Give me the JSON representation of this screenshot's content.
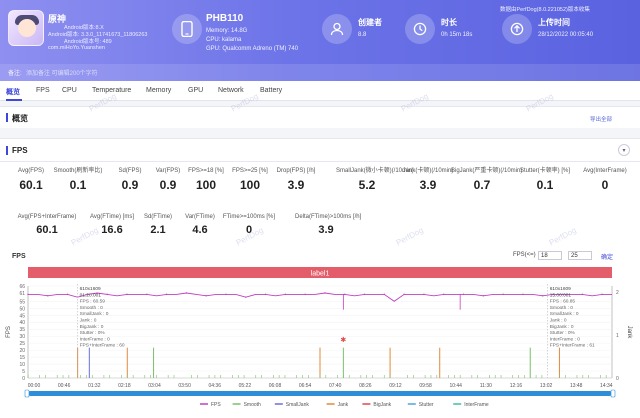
{
  "app": {
    "name": "原神",
    "line1": "Android版本:8.X",
    "line2": "Android版本: 3.3.0_11741673_11806263",
    "line3": "Android版本号: 489",
    "package": "com.miHoYo.Yuanshen",
    "note_label": "备注:",
    "note_text": "添加备注   可编辑200个字符"
  },
  "device": {
    "name": "PHB110",
    "memory": "Memory: 14.8G",
    "cpu": "CPU: kalama",
    "gpu": "GPU: Qualcomm Adreno (TM) 740"
  },
  "stats": [
    {
      "label": "创建者",
      "value": "8.8",
      "icon": "user-icon"
    },
    {
      "label": "时长",
      "value": "0h 15m 18s",
      "icon": "clock-icon"
    },
    {
      "label": "上传时间",
      "value": "28/12/2022 00:05:40",
      "icon": "upload-icon"
    }
  ],
  "top_right": "数据由PerfDog(8.0.221052)版本收集",
  "tabs": [
    "概览",
    "FPS",
    "CPU",
    "Temperature",
    "Memory",
    "GPU",
    "Network",
    "Battery"
  ],
  "overview": {
    "title": "概览",
    "link": "导出全部"
  },
  "fps_section": {
    "title": "FPS"
  },
  "metrics_row1": [
    {
      "label": "Avg(FPS)",
      "value": "60.1"
    },
    {
      "label": "Smooth(刷新率比)",
      "value": "0.1"
    },
    {
      "label": "Sd(FPS)",
      "value": "0.9"
    },
    {
      "label": "Var(FPS)",
      "value": "0.9"
    },
    {
      "label": "FPS>=18 [%]",
      "value": "100"
    },
    {
      "label": "FPS>=25 [%]",
      "value": "100"
    },
    {
      "label": "Drop(FPS) [/h]",
      "value": "3.9"
    },
    {
      "label": "SmallJank(微小卡顿)(/10min)",
      "value": "5.2"
    },
    {
      "label": "Jank(卡顿)(/10min)",
      "value": "3.9"
    },
    {
      "label": "BigJank(严重卡顿)(/10min)",
      "value": "0.7"
    },
    {
      "label": "Stutter(卡顿率) [%]",
      "value": "0.1"
    },
    {
      "label": "Avg(InterFrame)",
      "value": "0"
    }
  ],
  "metrics_row2": [
    {
      "label": "Avg(FPS+InterFrame)",
      "value": "60.1"
    },
    {
      "label": "Avg(FTime) [ms]",
      "value": "16.6"
    },
    {
      "label": "Sd(FTime)",
      "value": "2.1"
    },
    {
      "label": "Var(FTime)",
      "value": "4.6"
    },
    {
      "label": "FTime>=100ms [%]",
      "value": "0"
    },
    {
      "label": "Delta(FTime)>100ms [/h]",
      "value": "3.9"
    }
  ],
  "fps_chart_header": {
    "label": "FPS",
    "range_label": "FPS(<=)",
    "range_min": "18",
    "range_max": "25",
    "apply": "确定"
  },
  "chart_data": {
    "type": "line",
    "title": "label1",
    "ylabel": "FPS",
    "y2label": "Jank",
    "ylim": [
      0,
      65
    ],
    "yticks": [
      0,
      5,
      10,
      15,
      20,
      25,
      30,
      35,
      40,
      45,
      50,
      55,
      61,
      66
    ],
    "y2ticks": [
      "0",
      "1",
      "2"
    ],
    "x_ticks": [
      "00:00",
      "00:46",
      "01:32",
      "02:18",
      "03:04",
      "03:50",
      "04:36",
      "05:22",
      "06:08",
      "06:54",
      "07:40",
      "08:26",
      "09:12",
      "09:58",
      "10:44",
      "11:30",
      "12:16",
      "13:02",
      "13:48",
      "14:34"
    ],
    "fps_series_description": "mostly flat near 60 with drops",
    "fps_values": [
      60,
      60,
      59,
      60,
      60,
      58,
      60,
      61,
      60,
      59,
      60,
      60,
      60,
      59,
      60,
      60,
      61,
      60,
      59,
      60,
      60,
      60,
      58,
      60,
      60,
      59,
      60,
      60,
      60,
      60,
      61,
      60,
      60,
      59,
      60,
      60,
      60,
      55,
      60,
      60,
      60,
      59,
      60,
      60,
      60,
      60,
      59,
      60,
      60,
      60,
      60,
      60,
      59,
      60,
      60,
      60,
      60,
      59,
      60,
      60
    ],
    "jank_spikes_x": [
      0.085,
      0.105,
      0.17,
      0.215,
      0.5,
      0.54,
      0.62,
      0.705,
      0.86,
      0.91
    ],
    "legend": [
      {
        "name": "FPS",
        "color": "#c040c0"
      },
      {
        "name": "Smooth",
        "color": "#7bbf6a"
      },
      {
        "name": "SmallJank",
        "color": "#6b6fd9"
      },
      {
        "name": "Jank",
        "color": "#e08a3a"
      },
      {
        "name": "BigJank",
        "color": "#e04848"
      },
      {
        "name": "Stutter",
        "color": "#4aa8d8"
      },
      {
        "name": "InterFrame",
        "color": "#3fc0a0"
      }
    ],
    "tooltips": [
      {
        "header": "610x1609",
        "time": "01:20.001",
        "lines": [
          "FPS : 60.59",
          "Smooth : 0",
          "SmallJank : 0",
          "Jank : 0",
          "BigJank : 0",
          "Stutter : 0%",
          "InterFrame : 0",
          "FPS+InterFrame : 60"
        ]
      },
      {
        "header": "610x1609",
        "time": "15:00.001",
        "lines": [
          "FPS : 60.85",
          "Smooth : 0",
          "SmallJank : 0",
          "Jank : 0",
          "BigJank : 0",
          "Stutter : 0%",
          "InterFrame : 0",
          "FPS+InterFrame : 61"
        ]
      }
    ]
  }
}
